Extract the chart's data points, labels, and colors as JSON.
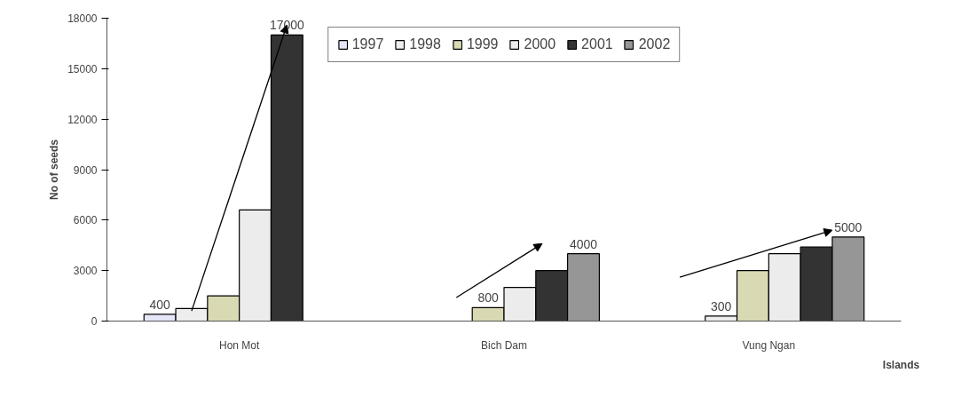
{
  "chart_data": {
    "type": "bar",
    "xlabel": "Islands",
    "ylabel": "No of seeds",
    "categories": [
      "Hon Mot",
      "Bich Dam",
      "Vung Ngan"
    ],
    "series": [
      {
        "name": "1997",
        "color": "#e6e6fa",
        "values": [
          400,
          null,
          null
        ],
        "value_labels": [
          "400",
          null,
          null
        ]
      },
      {
        "name": "1998",
        "color": "#eeeeee",
        "values": [
          750,
          null,
          300
        ],
        "value_labels": [
          null,
          null,
          "300"
        ]
      },
      {
        "name": "1999",
        "color": "#d9d9b3",
        "values": [
          1500,
          800,
          3000
        ],
        "value_labels": [
          null,
          "800",
          null
        ]
      },
      {
        "name": "2000",
        "color": "#ececec",
        "values": [
          6600,
          2000,
          4000
        ]
      },
      {
        "name": "2001",
        "color": "#333333",
        "values": [
          17000,
          3000,
          4400
        ],
        "value_labels": [
          "17000",
          null,
          null
        ]
      },
      {
        "name": "2002",
        "color": "#969696",
        "values": [
          null,
          4000,
          5000
        ],
        "value_labels": [
          null,
          "4000",
          "5000"
        ]
      }
    ],
    "ylim": [
      0,
      18000
    ],
    "yticks": [
      0,
      3000,
      6000,
      9000,
      12000,
      15000,
      18000
    ],
    "grid": false,
    "legend": "top"
  }
}
